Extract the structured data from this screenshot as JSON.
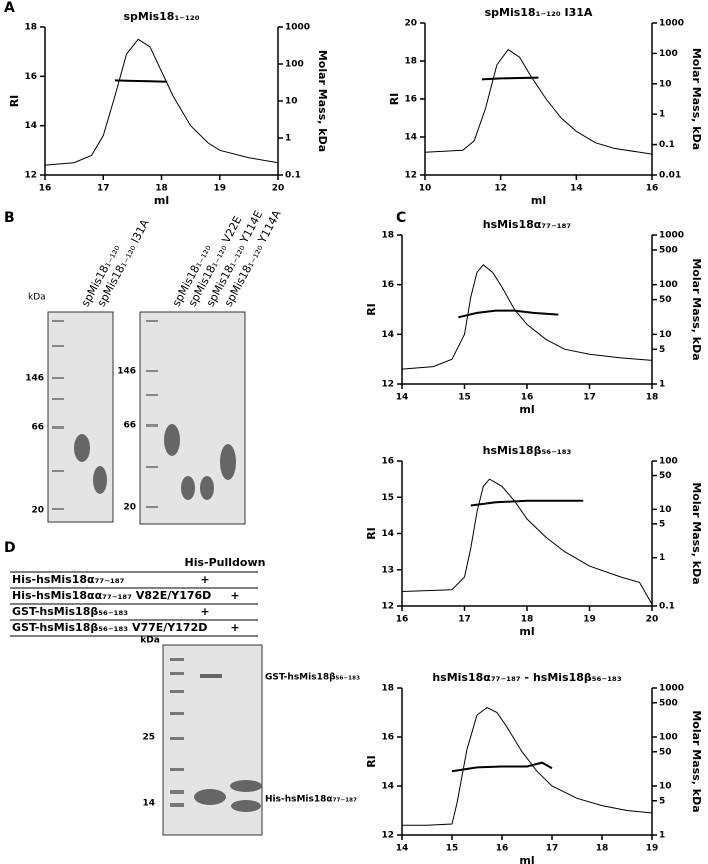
{
  "panel_labels": [
    "A",
    "B",
    "C",
    "D"
  ],
  "chart_data": [
    {
      "type": "line",
      "title": "spMis18₁₋₁₂₀",
      "xlabel": "ml",
      "ylabel": "RI",
      "y2label": "Molar Mass, kDa",
      "xlim": [
        16,
        20
      ],
      "xticks": [
        16,
        17,
        18,
        19,
        20
      ],
      "ylim": [
        12,
        18
      ],
      "yticks": [
        12,
        14,
        16,
        18
      ],
      "y2lim": [
        0.1,
        1000
      ],
      "y2ticks": [
        0.1,
        1,
        10,
        100,
        1000
      ],
      "y2log": true,
      "series": [
        {
          "name": "RI",
          "color": "#000000",
          "x": [
            16,
            16.5,
            16.8,
            17,
            17.2,
            17.4,
            17.6,
            17.8,
            18,
            18.2,
            18.5,
            18.8,
            19,
            19.5,
            20
          ],
          "values": [
            12.4,
            12.5,
            12.8,
            13.6,
            15.2,
            16.9,
            17.5,
            17.2,
            16.2,
            15.2,
            14.0,
            13.3,
            13.0,
            12.7,
            12.5
          ]
        },
        {
          "name": "Molar Mass",
          "color": "#000000",
          "axis": "y2",
          "x": [
            17.2,
            17.5,
            17.8,
            18.1
          ],
          "values": [
            36,
            35,
            34,
            33
          ]
        }
      ]
    },
    {
      "type": "line",
      "title": "spMis18₁₋₁₂₀ I31A",
      "xlabel": "ml",
      "ylabel": "RI",
      "y2label": "Molar Mass, kDa",
      "xlim": [
        10,
        16
      ],
      "xticks": [
        10,
        12,
        14,
        16
      ],
      "ylim": [
        12,
        20
      ],
      "yticks": [
        12,
        14,
        16,
        18,
        20
      ],
      "y2lim": [
        0.01,
        1000
      ],
      "y2ticks": [
        0.01,
        0.1,
        1,
        10,
        100,
        1000
      ],
      "y2log": true,
      "series": [
        {
          "name": "RI",
          "color": "#000000",
          "x": [
            10,
            11,
            11.3,
            11.6,
            11.9,
            12.2,
            12.5,
            12.8,
            13.2,
            13.6,
            14,
            14.5,
            15,
            16
          ],
          "values": [
            13.2,
            13.3,
            13.8,
            15.5,
            17.8,
            18.6,
            18.2,
            17.2,
            16.0,
            15.0,
            14.3,
            13.7,
            13.4,
            13.1
          ]
        },
        {
          "name": "Molar Mass",
          "color": "#000000",
          "axis": "y2",
          "x": [
            11.5,
            12,
            12.5,
            13
          ],
          "values": [
            14,
            15,
            15.5,
            16
          ]
        }
      ]
    },
    {
      "type": "line",
      "title": "hsMis18α₇₇₋₁₈₇",
      "xlabel": "ml",
      "ylabel": "RI",
      "y2label": "Molar Mass, kDa",
      "xlim": [
        14,
        18
      ],
      "xticks": [
        14,
        15,
        16,
        17,
        18
      ],
      "ylim": [
        12,
        18
      ],
      "yticks": [
        12,
        14,
        16,
        18
      ],
      "y2lim": [
        1,
        1000
      ],
      "y2ticks": [
        1,
        5,
        10,
        50,
        100,
        500,
        1000
      ],
      "y2log": true,
      "series": [
        {
          "name": "RI",
          "color": "#000000",
          "x": [
            14,
            14.5,
            14.8,
            15,
            15.1,
            15.2,
            15.3,
            15.45,
            15.6,
            15.8,
            16,
            16.3,
            16.6,
            17,
            17.5,
            18
          ],
          "values": [
            12.6,
            12.7,
            13.0,
            14.0,
            15.5,
            16.5,
            16.8,
            16.5,
            15.9,
            15.0,
            14.4,
            13.8,
            13.4,
            13.2,
            13.05,
            12.95
          ]
        },
        {
          "name": "Molar Mass",
          "color": "#000000",
          "axis": "y2",
          "x": [
            14.9,
            15.2,
            15.5,
            15.8,
            16.1,
            16.5
          ],
          "values": [
            22,
            27,
            30,
            30,
            27,
            25
          ]
        }
      ]
    },
    {
      "type": "line",
      "title": "hsMis18β₅₆₋₁₈₃",
      "xlabel": "ml",
      "ylabel": "RI",
      "y2label": "Molar Mass, kDa",
      "xlim": [
        16,
        20
      ],
      "xticks": [
        16,
        17,
        18,
        19,
        20
      ],
      "ylim": [
        12,
        16
      ],
      "yticks": [
        12,
        13,
        14,
        15,
        16
      ],
      "y2lim": [
        0.1,
        100
      ],
      "y2ticks": [
        0.1,
        1,
        5,
        10,
        50,
        100
      ],
      "y2log": true,
      "series": [
        {
          "name": "RI",
          "color": "#000000",
          "x": [
            16,
            16.8,
            17,
            17.1,
            17.2,
            17.3,
            17.4,
            17.6,
            17.8,
            18,
            18.3,
            18.6,
            19,
            19.5,
            19.8,
            20
          ],
          "values": [
            12.4,
            12.45,
            12.8,
            13.6,
            14.6,
            15.3,
            15.5,
            15.3,
            14.9,
            14.4,
            13.9,
            13.5,
            13.1,
            12.8,
            12.65,
            12.05
          ]
        },
        {
          "name": "Molar Mass",
          "color": "#000000",
          "axis": "y2",
          "x": [
            17.1,
            17.5,
            18,
            18.5,
            18.9
          ],
          "values": [
            12,
            14,
            15,
            15,
            15
          ]
        }
      ]
    },
    {
      "type": "line",
      "title": "hsMis18α₇₇₋₁₈₇ - hsMis18β₅₆₋₁₈₃",
      "xlabel": "ml",
      "ylabel": "RI",
      "y2label": "Molar Mass, kDa",
      "xlim": [
        14,
        19
      ],
      "xticks": [
        14,
        15,
        16,
        17,
        18,
        19
      ],
      "ylim": [
        12,
        18
      ],
      "yticks": [
        12,
        14,
        16,
        18
      ],
      "y2lim": [
        1,
        1000
      ],
      "y2ticks": [
        1,
        5,
        10,
        50,
        100,
        500,
        1000
      ],
      "y2log": true,
      "series": [
        {
          "name": "RI",
          "color": "#000000",
          "x": [
            14,
            14.5,
            15,
            15.1,
            15.3,
            15.5,
            15.7,
            15.9,
            16.1,
            16.4,
            16.7,
            17,
            17.5,
            18,
            18.5,
            19
          ],
          "values": [
            12.4,
            12.4,
            12.45,
            13.3,
            15.5,
            16.9,
            17.2,
            17.0,
            16.4,
            15.4,
            14.6,
            14.0,
            13.5,
            13.2,
            13.0,
            12.9
          ]
        },
        {
          "name": "Molar Mass",
          "color": "#000000",
          "axis": "y2",
          "x": [
            15,
            15.5,
            16,
            16.5,
            16.8,
            17
          ],
          "values": [
            20,
            24,
            25,
            25,
            30,
            23
          ]
        }
      ]
    }
  ],
  "gel_b": {
    "left": {
      "lanes": [
        "spMis18₁₋₁₂₀",
        "spMis18₁₋₁₂₀ I31A"
      ],
      "unit": "kDa",
      "markers": [
        "146",
        "66",
        "20"
      ]
    },
    "right": {
      "lanes": [
        "spMis18₁₋₁₂₀",
        "spMis18₁₋₁₂₀ V22E",
        "spMis18₁₋₁₂₀ Y114E",
        "spMis18₁₋₁₂₀ Y114A"
      ],
      "markers": [
        "146",
        "66",
        "20"
      ]
    }
  },
  "pulldown": {
    "header": "His-Pulldown",
    "rows": [
      {
        "label": "His-hsMis18α₇₇₋₁₈₇",
        "lane_1": "+"
      },
      {
        "label": "His-hsMis18αα₇₇₋₁₈₇ V82E/Y176D",
        "lane_2": "+"
      },
      {
        "label": "GST-hsMis18β₅₆₋₁₈₃",
        "lane_1": "+"
      },
      {
        "label": "GST-hsMis18β₅₆₋₁₈₃ V77E/Y172D",
        "lane_2": "+"
      }
    ],
    "gel": {
      "unit": "kDa",
      "markers": [
        "25",
        "14"
      ],
      "bands": [
        "GST-hsMis18β₅₆₋₁₈₃",
        "His-hsMis18α₇₇₋₁₈₇"
      ]
    }
  }
}
